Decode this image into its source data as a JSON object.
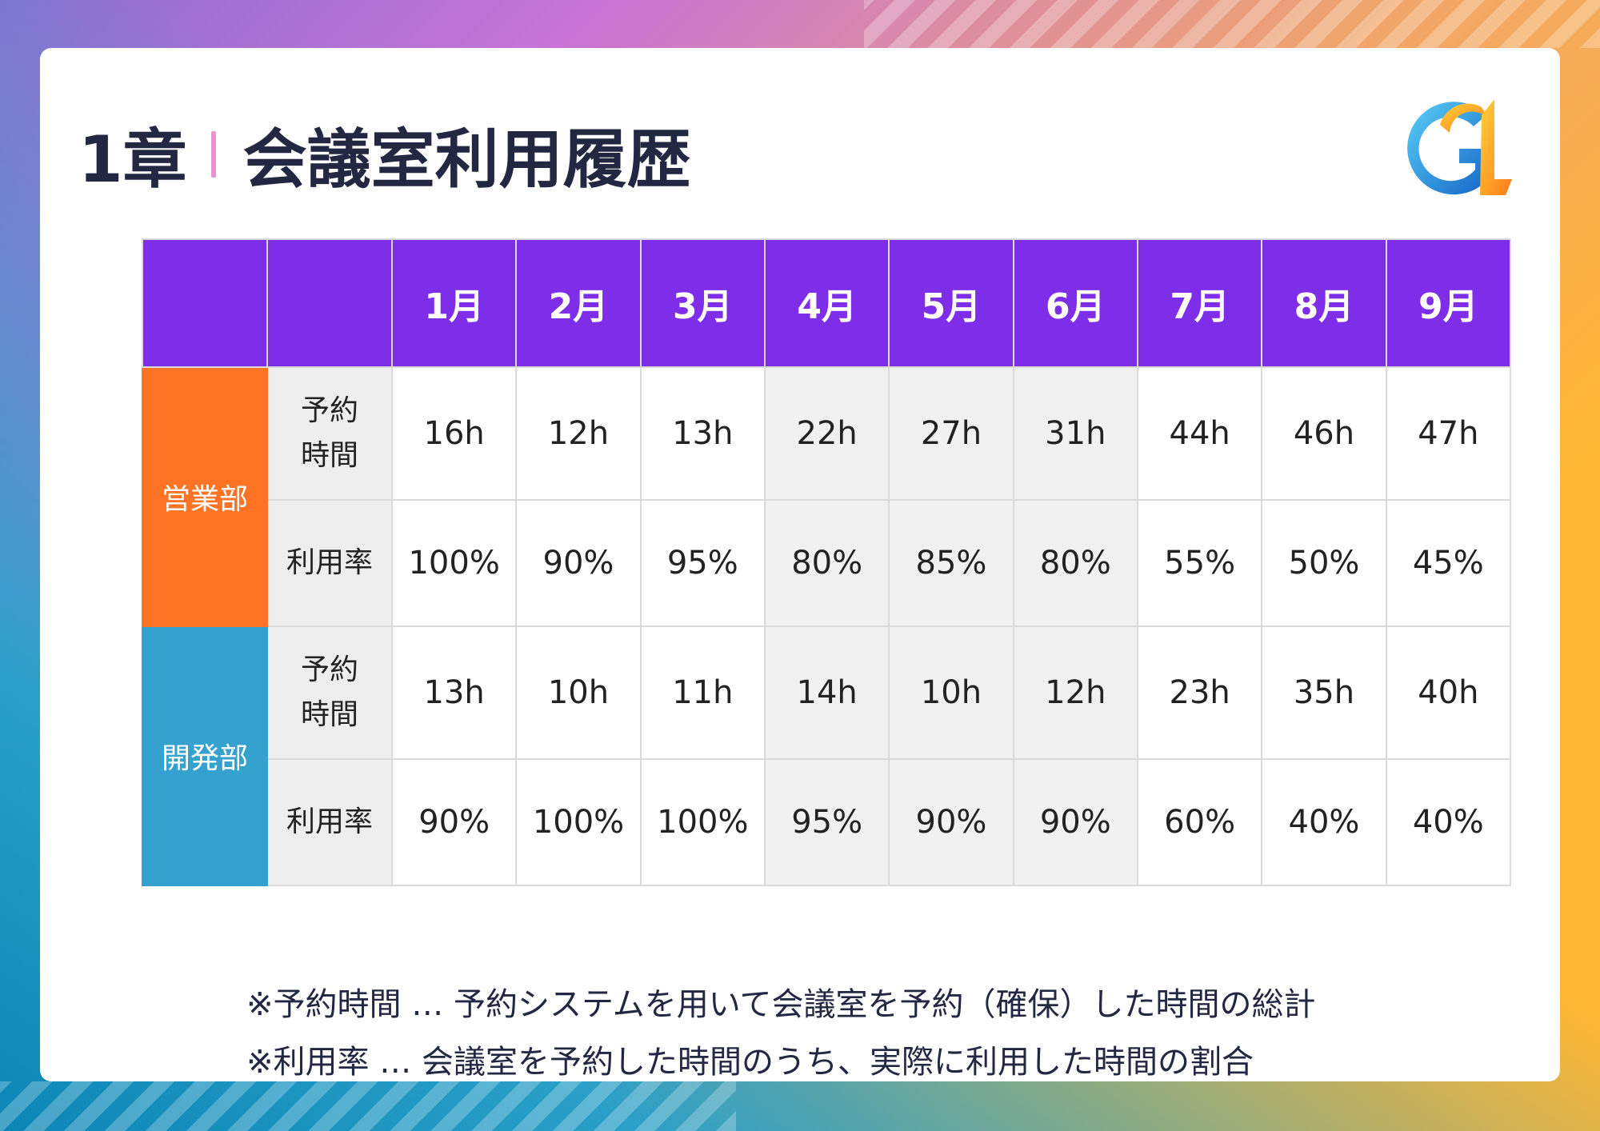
{
  "title": {
    "chapter": "1章",
    "heading": "会議室利用履歴"
  },
  "months": [
    "1月",
    "2月",
    "3月",
    "4月",
    "5月",
    "6月",
    "7月",
    "8月",
    "9月"
  ],
  "departments": [
    {
      "name": "営業部",
      "rows": [
        {
          "label": "予約\n時間",
          "values": [
            "16h",
            "12h",
            "13h",
            "22h",
            "27h",
            "31h",
            "44h",
            "46h",
            "47h"
          ]
        },
        {
          "label": "利用率",
          "values": [
            "100%",
            "90%",
            "95%",
            "80%",
            "85%",
            "80%",
            "55%",
            "50%",
            "45%"
          ]
        }
      ]
    },
    {
      "name": "開発部",
      "rows": [
        {
          "label": "予約\n時間",
          "values": [
            "13h",
            "10h",
            "11h",
            "14h",
            "10h",
            "12h",
            "23h",
            "35h",
            "40h"
          ]
        },
        {
          "label": "利用率",
          "values": [
            "90%",
            "100%",
            "100%",
            "95%",
            "90%",
            "90%",
            "60%",
            "40%",
            "40%"
          ]
        }
      ]
    }
  ],
  "notes": [
    "※予約時間 … 予約システムを用いて会議室を予約（確保）した時間の総計",
    "※利用率 … 会議室を予約した時間のうち、実際に利用した時間の割合"
  ],
  "colors": {
    "header": "#7e2ee8",
    "sales": "#ff7424",
    "dev": "#34a1cf",
    "title_text": "#222842"
  },
  "icons": {
    "logo": "gl-logo"
  }
}
